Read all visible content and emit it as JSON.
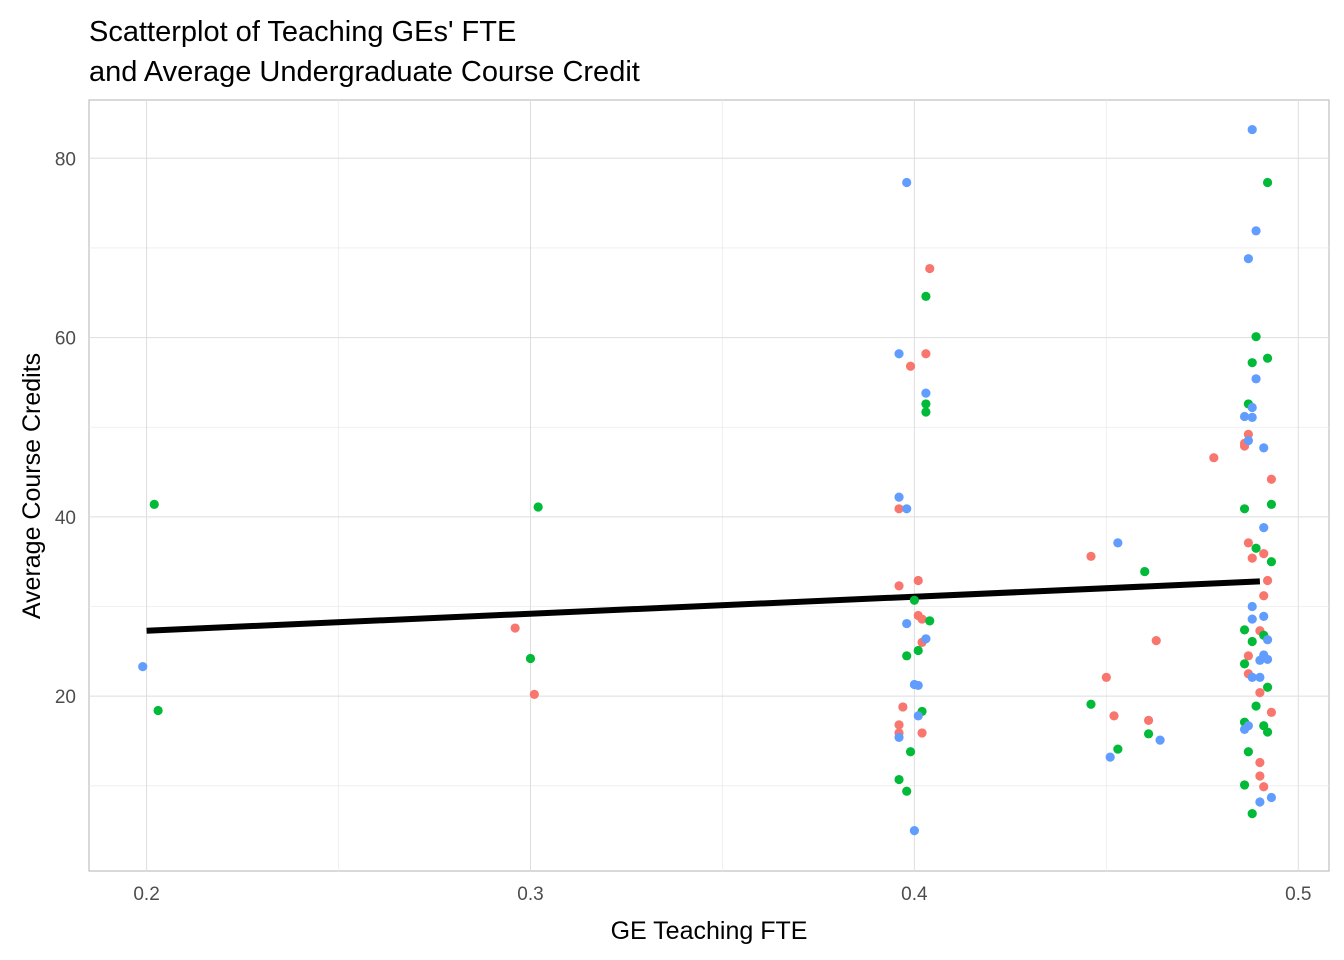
{
  "chart_data": {
    "type": "scatter",
    "title_lines": [
      "Scatterplot of Teaching GEs' FTE",
      "and Average Undergraduate Course Credit"
    ],
    "xlabel": "GE Teaching FTE",
    "ylabel": "Average Course Credits",
    "xlim": [
      0.185,
      0.508
    ],
    "ylim": [
      0.5,
      86.5
    ],
    "x_ticks": [
      0.2,
      0.3,
      0.4,
      0.5
    ],
    "x_tick_labels": [
      "0.2",
      "0.3",
      "0.4",
      "0.5"
    ],
    "y_ticks": [
      20,
      40,
      60,
      80
    ],
    "y_tick_labels": [
      "20",
      "40",
      "60",
      "80"
    ],
    "grid": true,
    "legend": "none",
    "series": [
      {
        "color": "#F8766D",
        "points": [
          [
            0.296,
            27.6
          ],
          [
            0.301,
            20.2
          ],
          [
            0.396,
            32.3
          ],
          [
            0.396,
            40.9
          ],
          [
            0.397,
            18.8
          ],
          [
            0.396,
            16.8
          ],
          [
            0.396,
            15.9
          ],
          [
            0.399,
            56.8
          ],
          [
            0.401,
            32.9
          ],
          [
            0.401,
            29.0
          ],
          [
            0.402,
            28.6
          ],
          [
            0.402,
            26.0
          ],
          [
            0.402,
            15.9
          ],
          [
            0.403,
            58.2
          ],
          [
            0.404,
            67.7
          ],
          [
            0.446,
            35.6
          ],
          [
            0.45,
            22.1
          ],
          [
            0.452,
            17.8
          ],
          [
            0.461,
            17.3
          ],
          [
            0.463,
            26.2
          ],
          [
            0.478,
            46.6
          ],
          [
            0.486,
            47.9
          ],
          [
            0.486,
            48.2
          ],
          [
            0.487,
            49.2
          ],
          [
            0.487,
            37.1
          ],
          [
            0.488,
            35.4
          ],
          [
            0.487,
            24.5
          ],
          [
            0.487,
            22.5
          ],
          [
            0.49,
            27.3
          ],
          [
            0.49,
            20.4
          ],
          [
            0.49,
            12.6
          ],
          [
            0.49,
            11.1
          ],
          [
            0.491,
            9.9
          ],
          [
            0.491,
            31.2
          ],
          [
            0.491,
            35.9
          ],
          [
            0.492,
            32.9
          ],
          [
            0.493,
            44.2
          ],
          [
            0.493,
            18.2
          ]
        ]
      },
      {
        "color": "#00BA38",
        "points": [
          [
            0.202,
            41.4
          ],
          [
            0.203,
            18.4
          ],
          [
            0.3,
            24.2
          ],
          [
            0.302,
            41.1
          ],
          [
            0.396,
            10.7
          ],
          [
            0.398,
            9.4
          ],
          [
            0.398,
            24.5
          ],
          [
            0.399,
            13.8
          ],
          [
            0.4,
            30.7
          ],
          [
            0.401,
            25.1
          ],
          [
            0.402,
            18.3
          ],
          [
            0.403,
            64.6
          ],
          [
            0.403,
            52.6
          ],
          [
            0.403,
            51.7
          ],
          [
            0.404,
            28.4
          ],
          [
            0.446,
            19.1
          ],
          [
            0.453,
            14.1
          ],
          [
            0.46,
            33.9
          ],
          [
            0.461,
            15.8
          ],
          [
            0.486,
            40.9
          ],
          [
            0.486,
            27.4
          ],
          [
            0.486,
            23.6
          ],
          [
            0.486,
            17.1
          ],
          [
            0.486,
            10.1
          ],
          [
            0.487,
            52.6
          ],
          [
            0.487,
            13.8
          ],
          [
            0.488,
            57.2
          ],
          [
            0.488,
            26.1
          ],
          [
            0.488,
            6.9
          ],
          [
            0.489,
            60.1
          ],
          [
            0.489,
            36.5
          ],
          [
            0.489,
            18.9
          ],
          [
            0.491,
            16.7
          ],
          [
            0.491,
            26.8
          ],
          [
            0.492,
            21.0
          ],
          [
            0.492,
            57.7
          ],
          [
            0.492,
            77.3
          ],
          [
            0.492,
            16.0
          ],
          [
            0.493,
            41.4
          ],
          [
            0.493,
            35.0
          ]
        ]
      },
      {
        "color": "#619CFF",
        "points": [
          [
            0.199,
            23.3
          ],
          [
            0.396,
            58.2
          ],
          [
            0.396,
            42.2
          ],
          [
            0.396,
            15.4
          ],
          [
            0.398,
            77.3
          ],
          [
            0.398,
            40.9
          ],
          [
            0.398,
            28.1
          ],
          [
            0.4,
            21.3
          ],
          [
            0.401,
            21.2
          ],
          [
            0.401,
            17.8
          ],
          [
            0.4,
            5.0
          ],
          [
            0.403,
            26.4
          ],
          [
            0.403,
            53.8
          ],
          [
            0.451,
            13.2
          ],
          [
            0.453,
            37.1
          ],
          [
            0.464,
            15.1
          ],
          [
            0.486,
            51.2
          ],
          [
            0.486,
            16.3
          ],
          [
            0.487,
            48.5
          ],
          [
            0.487,
            16.7
          ],
          [
            0.487,
            68.8
          ],
          [
            0.488,
            83.2
          ],
          [
            0.488,
            52.2
          ],
          [
            0.488,
            51.1
          ],
          [
            0.488,
            28.6
          ],
          [
            0.488,
            22.1
          ],
          [
            0.488,
            30.0
          ],
          [
            0.489,
            71.9
          ],
          [
            0.489,
            55.4
          ],
          [
            0.49,
            8.2
          ],
          [
            0.49,
            24.0
          ],
          [
            0.49,
            22.1
          ],
          [
            0.491,
            47.7
          ],
          [
            0.491,
            38.8
          ],
          [
            0.491,
            28.9
          ],
          [
            0.491,
            24.6
          ],
          [
            0.492,
            26.3
          ],
          [
            0.492,
            24.1
          ],
          [
            0.493,
            8.7
          ]
        ]
      }
    ],
    "trend_line": {
      "x": [
        0.2,
        0.49
      ],
      "y": [
        27.3,
        32.8
      ],
      "color": "#000000"
    }
  }
}
